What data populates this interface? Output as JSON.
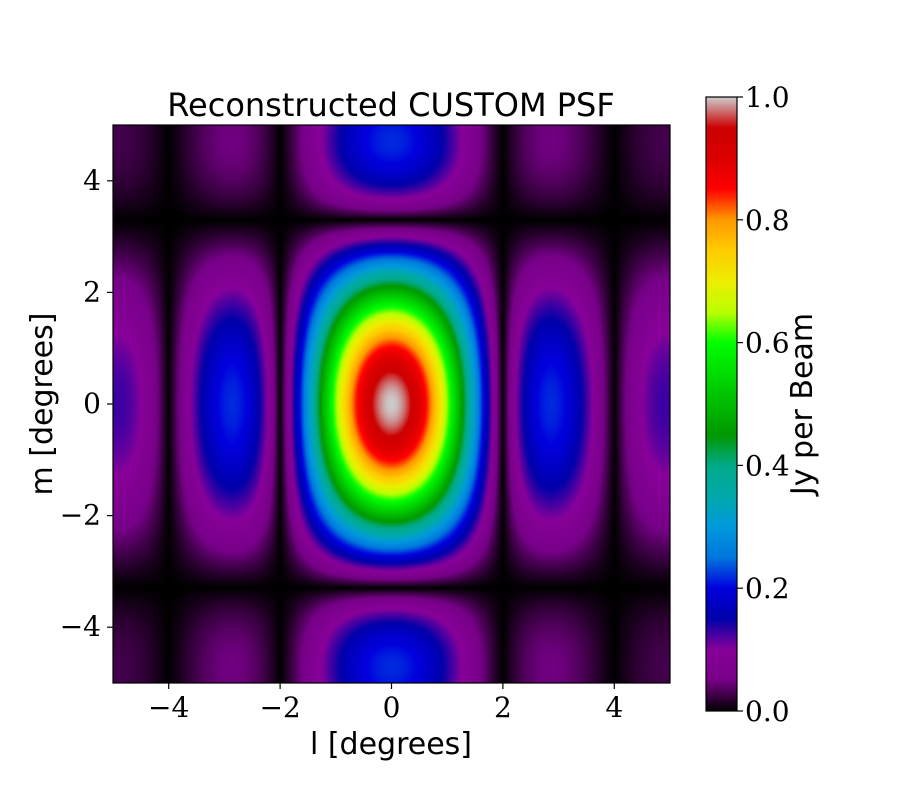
{
  "chart_data": {
    "type": "heatmap",
    "title": "Reconstructed CUSTOM PSF",
    "xlabel": "l [degrees]",
    "ylabel": "m [degrees]",
    "xlim": [
      -5,
      5
    ],
    "ylim": [
      -5,
      5
    ],
    "x_ticks": [
      -4,
      -2,
      0,
      2,
      4
    ],
    "y_ticks": [
      -4,
      -2,
      0,
      2,
      4
    ],
    "x_tick_labels": [
      "−4",
      "−2",
      "0",
      "2",
      "4"
    ],
    "y_tick_labels": [
      "−4",
      "−2",
      "0",
      "2",
      "4"
    ],
    "colorbar": {
      "label": "Jy per Beam",
      "range": [
        0.0,
        1.0
      ],
      "ticks": [
        0.0,
        0.2,
        0.4,
        0.6,
        0.8,
        1.0
      ],
      "tick_labels": [
        "0.0",
        "0.2",
        "0.4",
        "0.6",
        "0.8",
        "1.0"
      ],
      "colormap": "nipy_spectral"
    },
    "model": {
      "function": "abs(sinc(l/2) * sinc(m/3.3))",
      "peak": [
        0,
        0
      ],
      "peak_value": 1.0,
      "l_zeros": [
        -4,
        -2,
        2,
        4
      ],
      "m_zeros": [
        -3.3,
        3.3
      ]
    },
    "grid": false
  }
}
